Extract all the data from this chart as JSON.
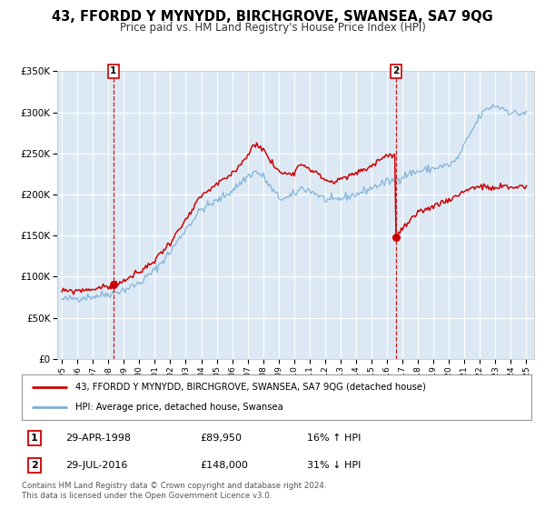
{
  "title": "43, FFORDD Y MYNYDD, BIRCHGROVE, SWANSEA, SA7 9QG",
  "subtitle": "Price paid vs. HM Land Registry's House Price Index (HPI)",
  "background_color": "#ffffff",
  "plot_bg_color": "#dce9f5",
  "grid_color": "#ffffff",
  "red_line_color": "#cc0000",
  "blue_line_color": "#7aaed6",
  "sale1_x": 1998.33,
  "sale1_y": 89950,
  "sale2_x": 2016.58,
  "sale2_y": 148000,
  "legend_line1": "43, FFORDD Y MYNYDD, BIRCHGROVE, SWANSEA, SA7 9QG (detached house)",
  "legend_line2": "HPI: Average price, detached house, Swansea",
  "table_row1": [
    "1",
    "29-APR-1998",
    "£89,950",
    "16% ↑ HPI"
  ],
  "table_row2": [
    "2",
    "29-JUL-2016",
    "£148,000",
    "31% ↓ HPI"
  ],
  "copyright": "Contains HM Land Registry data © Crown copyright and database right 2024.\nThis data is licensed under the Open Government Licence v3.0.",
  "ylim": [
    0,
    350000
  ],
  "yticks": [
    0,
    50000,
    100000,
    150000,
    200000,
    250000,
    300000,
    350000
  ],
  "ytick_labels": [
    "£0",
    "£50K",
    "£100K",
    "£150K",
    "£200K",
    "£250K",
    "£300K",
    "£350K"
  ],
  "xlim_start": 1994.7,
  "xlim_end": 2025.5,
  "hpi_anchors": {
    "1995.0": 72000,
    "1996.0": 74000,
    "1997.0": 76000,
    "1998.0": 79000,
    "1999.0": 84000,
    "2000.0": 92000,
    "2001.0": 108000,
    "2002.0": 130000,
    "2003.0": 158000,
    "2004.0": 182000,
    "2005.0": 192000,
    "2006.0": 205000,
    "2007.0": 222000,
    "2007.5": 228000,
    "2008.0": 222000,
    "2008.5": 208000,
    "2009.0": 196000,
    "2009.5": 195000,
    "2010.0": 200000,
    "2010.5": 208000,
    "2011.0": 205000,
    "2011.5": 200000,
    "2012.0": 194000,
    "2012.5": 192000,
    "2013.0": 195000,
    "2013.5": 198000,
    "2014.0": 200000,
    "2014.5": 204000,
    "2015.0": 208000,
    "2015.5": 212000,
    "2016.0": 215000,
    "2016.5": 218000,
    "2017.0": 222000,
    "2017.5": 226000,
    "2018.0": 228000,
    "2018.5": 230000,
    "2019.0": 232000,
    "2019.5": 234000,
    "2020.0": 236000,
    "2020.5": 242000,
    "2021.0": 260000,
    "2021.5": 278000,
    "2022.0": 295000,
    "2022.5": 305000,
    "2023.0": 308000,
    "2023.5": 305000,
    "2024.0": 300000,
    "2024.5": 298000,
    "2025.0": 300000
  },
  "prop_anchors": {
    "1995.0": 82000,
    "1996.0": 83000,
    "1997.0": 85000,
    "1998.0": 88000,
    "1998.33": 89950,
    "1999.0": 95000,
    "2000.0": 105000,
    "2001.0": 120000,
    "2002.0": 142000,
    "2003.0": 168000,
    "2004.0": 198000,
    "2005.0": 212000,
    "2006.0": 225000,
    "2007.0": 248000,
    "2007.5": 263000,
    "2008.0": 255000,
    "2008.5": 240000,
    "2009.0": 228000,
    "2009.5": 225000,
    "2010.0": 228000,
    "2010.5": 238000,
    "2011.0": 232000,
    "2011.5": 225000,
    "2012.0": 218000,
    "2012.5": 215000,
    "2013.0": 218000,
    "2013.5": 222000,
    "2014.0": 226000,
    "2014.5": 230000,
    "2015.0": 235000,
    "2015.5": 242000,
    "2016.0": 248000,
    "2016.55": 248000,
    "2016.58": 148000,
    "2017.0": 158000,
    "2017.5": 168000,
    "2018.0": 176000,
    "2018.5": 182000,
    "2019.0": 186000,
    "2019.5": 190000,
    "2020.0": 194000,
    "2020.5": 198000,
    "2021.0": 205000,
    "2021.5": 208000,
    "2022.0": 210000,
    "2022.5": 208000,
    "2023.0": 207000,
    "2023.5": 210000,
    "2024.0": 208000,
    "2024.5": 210000,
    "2025.0": 210000
  }
}
